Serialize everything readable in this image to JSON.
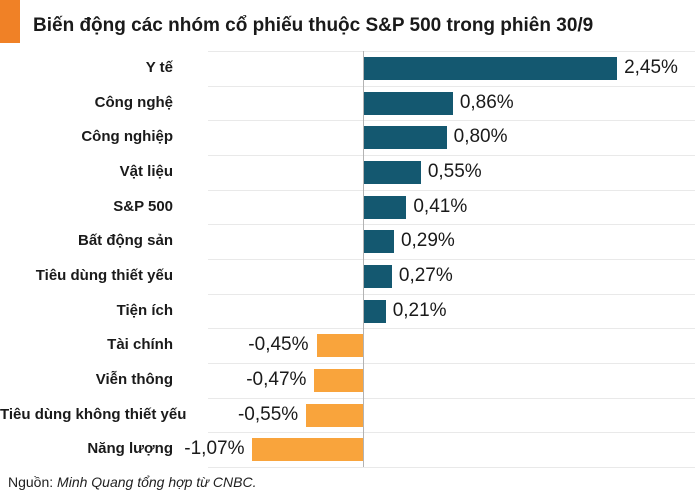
{
  "header": {
    "title": "Biến động các nhóm cổ phiếu thuộc S&P 500 trong phiên 30/9",
    "accent_color": "#f08126"
  },
  "footer": {
    "source_prefix": "Nguồn: ",
    "source_text": "Minh Quang tổng hợp từ CNBC."
  },
  "colors": {
    "positive_bar": "#145870",
    "negative_bar": "#f9a43c",
    "gridline": "#e9e9e9",
    "baseline": "#b3b3b3",
    "text": "#1a1a1a"
  },
  "chart_data": {
    "type": "bar",
    "orientation": "horizontal",
    "title": "Biến động các nhóm cổ phiếu thuộc S&P 500 trong phiên 30/9",
    "categories": [
      "Y tế",
      "Công nghệ",
      "Công nghiệp",
      "Vật liệu",
      "S&P 500",
      "Bất động sản",
      "Tiêu dùng thiết yếu",
      "Tiện ích",
      "Tài chính",
      "Viễn thông",
      "Tiêu dùng không thiết yếu",
      "Năng lượng"
    ],
    "values": [
      2.45,
      0.86,
      0.8,
      0.55,
      0.41,
      0.29,
      0.27,
      0.21,
      -0.45,
      -0.47,
      -0.55,
      -1.07
    ],
    "value_labels": [
      "2,45%",
      "0,86%",
      "0,80%",
      "0,55%",
      "0,41%",
      "0,29%",
      "0,27%",
      "0,21%",
      "-0,45%",
      "-0,47%",
      "-0,55%",
      "-1,07%"
    ],
    "unit": "%",
    "xlim": [
      -1.5,
      3.2
    ],
    "grid": true,
    "legend": false,
    "positive_color": "#145870",
    "negative_color": "#f9a43c"
  }
}
